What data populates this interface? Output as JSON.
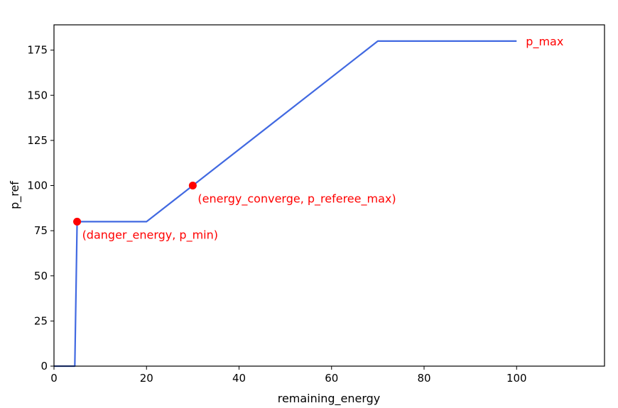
{
  "chart_data": {
    "type": "line",
    "title": "",
    "xlabel": "remaining_energy",
    "ylabel": "p_ref",
    "xlim": [
      0,
      119
    ],
    "ylim": [
      0,
      189
    ],
    "xticks": [
      0,
      20,
      40,
      60,
      80,
      100
    ],
    "yticks": [
      0,
      25,
      50,
      75,
      100,
      125,
      150,
      175
    ],
    "grid": false,
    "series": [
      {
        "color": "#4169e1",
        "x": [
          0,
          4.5,
          5,
          20,
          30,
          70,
          100
        ],
        "y": [
          0,
          0,
          80,
          80,
          100,
          180,
          180
        ]
      }
    ],
    "points": [
      {
        "x": 5,
        "y": 80,
        "color": "#ff0000",
        "label": "(danger_energy, p_min)"
      },
      {
        "x": 30,
        "y": 100,
        "color": "#ff0000",
        "label": "(energy_converge, p_referee_max)"
      }
    ],
    "annotations": [
      {
        "text": "p_max",
        "x": 102,
        "y": 180,
        "color": "#ff0000"
      }
    ]
  }
}
